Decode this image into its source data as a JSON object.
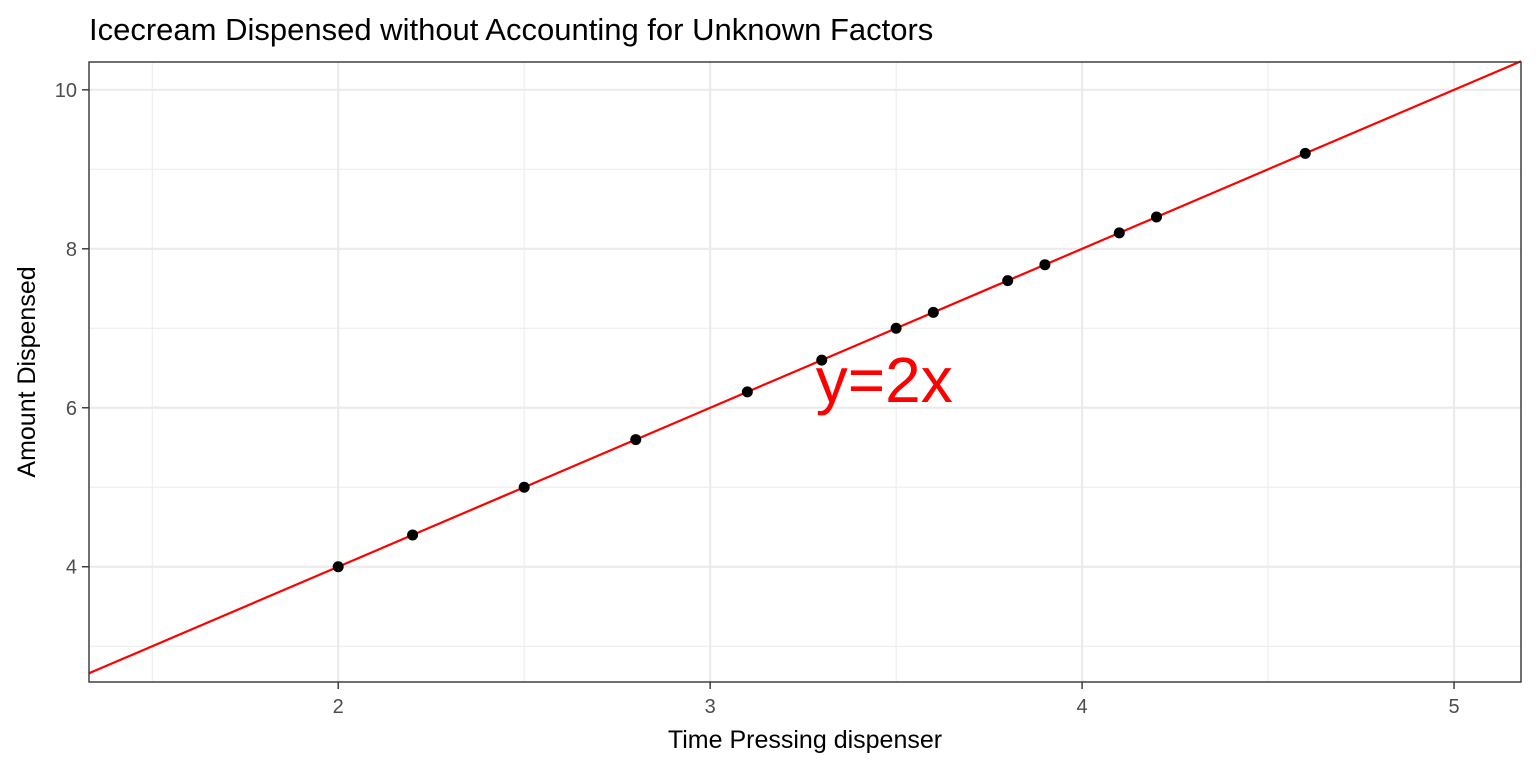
{
  "chart_data": {
    "type": "scatter",
    "title": "Icecream Dispensed without Accounting for Unknown Factors",
    "xlabel": "Time Pressing dispenser",
    "ylabel": "Amount Dispensed",
    "xlim": [
      1.33,
      5.18
    ],
    "ylim": [
      2.55,
      10.35
    ],
    "x_major_ticks": [
      2,
      3,
      4,
      5
    ],
    "x_tick_labels": [
      "2",
      "3",
      "4",
      "5"
    ],
    "y_major_ticks": [
      4,
      6,
      8,
      10
    ],
    "y_tick_labels": [
      "4",
      "6",
      "8",
      "10"
    ],
    "x_minor_ticks": [
      1.5,
      2.5,
      3.5,
      4.5
    ],
    "y_minor_ticks": [
      3,
      5,
      7,
      9
    ],
    "grid": true,
    "points": [
      {
        "x": 2.0,
        "y": 4.0
      },
      {
        "x": 2.2,
        "y": 4.4
      },
      {
        "x": 2.5,
        "y": 5.0
      },
      {
        "x": 2.8,
        "y": 5.6
      },
      {
        "x": 3.1,
        "y": 6.2
      },
      {
        "x": 3.3,
        "y": 6.6
      },
      {
        "x": 3.5,
        "y": 7.0
      },
      {
        "x": 3.6,
        "y": 7.2
      },
      {
        "x": 3.8,
        "y": 7.6
      },
      {
        "x": 3.9,
        "y": 7.8
      },
      {
        "x": 4.1,
        "y": 8.2
      },
      {
        "x": 4.2,
        "y": 8.4
      },
      {
        "x": 4.6,
        "y": 9.2
      }
    ],
    "point_color": "#000000",
    "line": {
      "slope": 2,
      "intercept": 0,
      "color": "#ff0000"
    },
    "annotation": {
      "text": "y=2x",
      "x": 3.3,
      "y": 6.2,
      "color": "#ff0000"
    }
  }
}
